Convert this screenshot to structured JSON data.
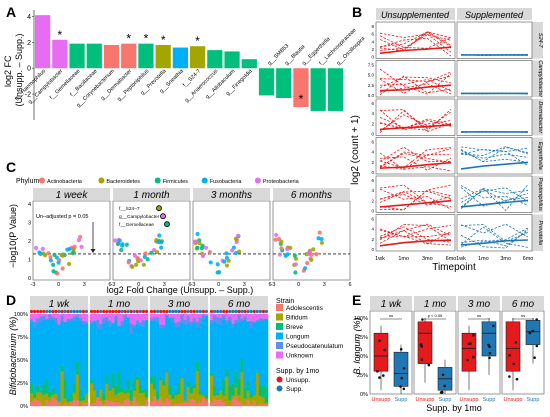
{
  "panel_letters": [
    "A",
    "B",
    "C",
    "D",
    "E"
  ],
  "colors": {
    "Actinobacteria": "#f8766d",
    "Bacteroidetes": "#a3a500",
    "Firmicutes": "#00bf7d",
    "Fusobacteria": "#00b0f6",
    "Proteobacteria": "#e76bf3",
    "Adolescentis": "#f8766d",
    "Bifidum": "#a3a500",
    "Breve": "#00bf7d",
    "Longum": "#00b0f6",
    "Pseudocatenulatum": "#5e8ef0",
    "Unknown": "#e76bf3",
    "Unsupp": "#e41a1c",
    "Supp": "#1f78b4",
    "strip": "#d9d9d9"
  },
  "panelA": {
    "ylabel": "log2 FC\n(Unsupp. – Supp.)",
    "yticks": [
      "-2",
      "0",
      "2",
      "4"
    ],
    "chart_data": {
      "type": "bar",
      "categories": [
        "g__Haemophilus",
        "g__Campylobacter",
        "f__Gemellaceae",
        "f__Bacillaceae",
        "g__Corynebacterium",
        "g__Dermabacter",
        "g__Peptoniphilus",
        "g__Prevotella",
        "g__Sneathia",
        "f__S24-7",
        "g__Anaerococcus",
        "g__Allobaculum",
        "g__Finegoldia",
        "g__SMB53",
        "g__Blautia",
        "g__Eggerthella",
        "f__Lachnospiraceae",
        "g__Oscillospira"
      ],
      "values": [
        4.1,
        2.2,
        1.9,
        1.9,
        1.8,
        1.9,
        1.9,
        1.8,
        1.6,
        1.7,
        1.4,
        1.3,
        0.7,
        -2.1,
        -2.3,
        -3.0,
        -3.3,
        -3.3
      ],
      "phylum": [
        "Proteobacteria",
        "Proteobacteria",
        "Firmicutes",
        "Firmicutes",
        "Actinobacteria",
        "Actinobacteria",
        "Firmicutes",
        "Bacteroidetes",
        "Fusobacteria",
        "Bacteroidetes",
        "Firmicutes",
        "Firmicutes",
        "Firmicutes",
        "Firmicutes",
        "Firmicutes",
        "Actinobacteria",
        "Firmicutes",
        "Firmicutes"
      ],
      "significant": [
        false,
        true,
        false,
        false,
        false,
        true,
        true,
        true,
        false,
        true,
        false,
        false,
        false,
        false,
        false,
        true,
        false,
        false
      ],
      "ylim": [
        -4,
        4.5
      ],
      "xlabel": "",
      "ylabel": "log2 FC (Unsupp. – Supp.)"
    }
  },
  "panelB": {
    "strip_left": "Unsupplemented",
    "strip_right": "Supplemented",
    "ylabel": "log2 (count + 1)",
    "xlabel": "Timepoint",
    "xticks": [
      "1wk",
      "1mo",
      "3mo",
      "6mo"
    ],
    "rows": [
      {
        "label": "S24-7",
        "yticks": [
          "0",
          "2",
          "4",
          "6",
          "8"
        ]
      },
      {
        "label": "Campylobacter",
        "yticks": [
          "0.0",
          "2.5",
          "5.0",
          "7.5"
        ]
      },
      {
        "label": "Dermabacter",
        "yticks": [
          "0",
          "2",
          "4",
          "6"
        ]
      },
      {
        "label": "Eggerthella",
        "yticks": [
          "0",
          "2",
          "4",
          "6"
        ]
      },
      {
        "label": "Peptoniphilus",
        "yticks": [
          "0",
          "2",
          "4",
          "6"
        ]
      },
      {
        "label": "Prevotella",
        "yticks": [
          "0",
          "2",
          "4",
          "6"
        ]
      }
    ]
  },
  "panelC": {
    "legend_title": "Phylum",
    "legend": [
      "Actinobacteria",
      "Bacteroidetes",
      "Firmicutes",
      "Fusobacteria",
      "Proteobacteria"
    ],
    "facets": [
      "1 week",
      "1 month",
      "3 months",
      "6 months"
    ],
    "ylabel": "−log10(P Value)",
    "xlabel": "log2 Fold Change (Unsupp. – Supp.)",
    "yticks": [
      "0",
      "1",
      "2",
      "3",
      "4"
    ],
    "xticks": [
      "-3",
      "0",
      "3",
      "6"
    ],
    "annotation": "Un–adjusted p = 0.05",
    "labels_1mo": [
      "f__S24–7",
      "g__Campylobacter",
      "f__Gemellaceae"
    ]
  },
  "panelD": {
    "ylabel": "Bifidobacterium (%)",
    "yticks": [
      "0%",
      "25%",
      "50%",
      "75%",
      "100%"
    ],
    "facets": [
      "1 wk",
      "1 mo",
      "3 mo",
      "6 mo"
    ],
    "legend_strain_title": "Strain",
    "legend_strain": [
      "Adolescentis",
      "Bifidum",
      "Breve",
      "Longum",
      "Pseudocatenulatum",
      "Unknown"
    ],
    "legend_supp_title": "Supp. by 1mo",
    "legend_supp": [
      "Unsupp.",
      "Supp."
    ]
  },
  "panelE": {
    "facets": [
      "1 wk",
      "1 mo",
      "3 mo",
      "6 mo"
    ],
    "ylabel": "B. longum (%)",
    "yticks": [
      "0%",
      "25%",
      "50%",
      "75%",
      "100%"
    ],
    "xlabel": "Supp. by 1mo",
    "xticks": [
      "Unsupp",
      "Supp"
    ],
    "sig": [
      "ns",
      "p < 0.05",
      "ns",
      "ns"
    ],
    "chart_data": {
      "type": "box",
      "groups": [
        "Unsupp",
        "Supp"
      ],
      "facets": [
        {
          "label": "1 wk",
          "Unsupp": {
            "q1": 0.3,
            "median": 0.5,
            "q3": 0.8
          },
          "Supp": {
            "q1": 0.1,
            "median": 0.27,
            "q3": 0.55
          }
        },
        {
          "label": "1 mo",
          "Unsupp": {
            "q1": 0.4,
            "median": 0.8,
            "q3": 0.95
          },
          "Supp": {
            "q1": 0.05,
            "median": 0.2,
            "q3": 0.35
          }
        },
        {
          "label": "3 mo",
          "Unsupp": {
            "q1": 0.3,
            "median": 0.6,
            "q3": 0.8
          },
          "Supp": {
            "q1": 0.5,
            "median": 0.8,
            "q3": 0.95
          }
        },
        {
          "label": "6 mo",
          "Unsupp": {
            "q1": 0.3,
            "median": 0.6,
            "q3": 0.95
          },
          "Supp": {
            "q1": 0.65,
            "median": 0.82,
            "q3": 0.97
          }
        }
      ],
      "ylim": [
        0,
        1
      ]
    }
  }
}
